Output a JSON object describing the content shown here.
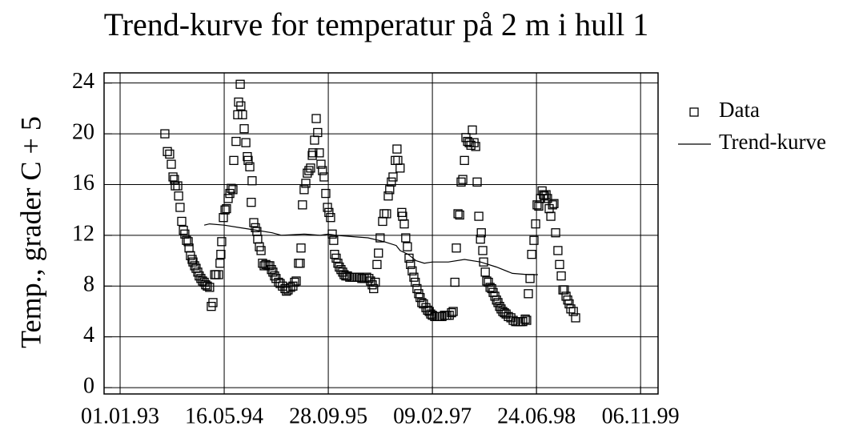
{
  "chart_data": {
    "type": "scatter",
    "title": "Trend-kurve for temperatur på 2 m i hull 1",
    "y_label": "Temp., grader C + 5",
    "xlim": [
      "1992-10-16",
      "2000-01-29"
    ],
    "xticks": [
      {
        "value": "1993-01-01",
        "label": "01.01.93"
      },
      {
        "value": "1994-05-16",
        "label": "16.05.94"
      },
      {
        "value": "1995-09-28",
        "label": "28.09.95"
      },
      {
        "value": "1997-02-09",
        "label": "09.02.97"
      },
      {
        "value": "1998-06-24",
        "label": "24.06.98"
      },
      {
        "value": "1999-11-06",
        "label": "06.11.99"
      }
    ],
    "ylim": [
      -0.5,
      24.8
    ],
    "yticks": [
      0,
      4,
      8,
      12,
      16,
      20,
      24
    ],
    "grid": true,
    "legend": "right",
    "series": [
      {
        "name": "Data",
        "marker": "square",
        "color": "#000000",
        "x": [
          "1993-08-04",
          "1993-08-16",
          "1993-08-27",
          "1993-09-04",
          "1993-09-12",
          "1993-09-19",
          "1993-09-23",
          "1993-10-05",
          "1993-10-09",
          "1993-10-16",
          "1993-10-24",
          "1993-11-01",
          "1993-11-08",
          "1993-11-16",
          "1993-11-24",
          "1993-11-28",
          "1993-12-05",
          "1993-12-13",
          "1993-12-17",
          "1993-12-25",
          "1994-01-01",
          "1994-01-09",
          "1994-01-16",
          "1994-01-24",
          "1994-02-01",
          "1994-02-09",
          "1994-02-16",
          "1994-02-24",
          "1994-03-07",
          "1994-03-15",
          "1994-03-23",
          "1994-03-31",
          "1994-04-07",
          "1994-04-19",
          "1994-04-26",
          "1994-04-30",
          "1994-05-04",
          "1994-05-12",
          "1994-05-20",
          "1994-05-27",
          "1994-06-04",
          "1994-06-12",
          "1994-06-19",
          "1994-06-27",
          "1994-07-01",
          "1994-07-12",
          "1994-07-20",
          "1994-07-24",
          "1994-08-01",
          "1994-08-04",
          "1994-08-12",
          "1994-08-20",
          "1994-08-28",
          "1994-09-04",
          "1994-09-08",
          "1994-09-16",
          "1994-09-23",
          "1994-09-27",
          "1994-10-05",
          "1994-10-13",
          "1994-10-20",
          "1994-10-24",
          "1994-11-01",
          "1994-11-09",
          "1994-11-16",
          "1994-11-24",
          "1994-12-02",
          "1994-12-13",
          "1994-12-21",
          "1994-12-29",
          "1995-01-05",
          "1995-01-13",
          "1995-01-20",
          "1995-02-01",
          "1995-02-09",
          "1995-02-20",
          "1995-03-04",
          "1995-03-11",
          "1995-03-19",
          "1995-03-31",
          "1995-04-11",
          "1995-04-19",
          "1995-04-27",
          "1995-05-08",
          "1995-05-16",
          "1995-05-20",
          "1995-05-27",
          "1995-06-04",
          "1995-06-12",
          "1995-06-19",
          "1995-06-27",
          "1995-07-05",
          "1995-07-13",
          "1995-07-16",
          "1995-07-24",
          "1995-08-01",
          "1995-08-08",
          "1995-08-16",
          "1995-08-24",
          "1995-08-31",
          "1995-09-08",
          "1995-09-16",
          "1995-09-24",
          "1995-10-01",
          "1995-10-09",
          "1995-10-17",
          "1995-10-24",
          "1995-10-28",
          "1995-11-05",
          "1995-11-13",
          "1995-11-20",
          "1995-11-28",
          "1995-12-06",
          "1995-12-13",
          "1995-12-21",
          "1995-12-29",
          "1996-01-09",
          "1996-01-21",
          "1996-02-01",
          "1996-02-13",
          "1996-02-24",
          "1996-03-07",
          "1996-03-18",
          "1996-03-30",
          "1996-04-10",
          "1996-04-18",
          "1996-04-26",
          "1996-05-03",
          "1996-05-11",
          "1996-05-19",
          "1996-05-26",
          "1996-06-03",
          "1996-06-15",
          "1996-06-22",
          "1996-07-04",
          "1996-07-12",
          "1996-07-19",
          "1996-07-27",
          "1996-08-04",
          "1996-08-15",
          "1996-08-23",
          "1996-08-27",
          "1996-09-07",
          "1996-09-15",
          "1996-09-19",
          "1996-09-27",
          "1996-10-04",
          "1996-10-12",
          "1996-10-20",
          "1996-10-27",
          "1996-11-04",
          "1996-11-12",
          "1996-11-19",
          "1996-11-27",
          "1996-12-05",
          "1996-12-12",
          "1996-12-20",
          "1996-12-28",
          "1997-01-09",
          "1997-01-17",
          "1997-01-25",
          "1997-02-01",
          "1997-02-09",
          "1997-02-20",
          "1997-03-04",
          "1997-03-16",
          "1997-03-27",
          "1997-04-08",
          "1997-04-19",
          "1997-05-01",
          "1997-05-12",
          "1997-05-20",
          "1997-05-28",
          "1997-06-04",
          "1997-06-12",
          "1997-06-20",
          "1997-06-27",
          "1997-07-05",
          "1997-07-13",
          "1997-07-20",
          "1997-07-28",
          "1997-08-05",
          "1997-08-13",
          "1997-08-20",
          "1997-08-28",
          "1997-09-05",
          "1997-09-12",
          "1997-09-20",
          "1997-09-28",
          "1997-10-02",
          "1997-10-09",
          "1997-10-13",
          "1997-10-21",
          "1997-10-28",
          "1997-11-05",
          "1997-11-13",
          "1997-11-21",
          "1997-11-28",
          "1997-12-06",
          "1997-12-14",
          "1997-12-21",
          "1997-12-29",
          "1998-01-05",
          "1998-01-13",
          "1998-01-21",
          "1998-01-29",
          "1998-02-09",
          "1998-02-21",
          "1998-03-04",
          "1998-03-16",
          "1998-03-27",
          "1998-04-08",
          "1998-04-19",
          "1998-05-01",
          "1998-05-08",
          "1998-05-16",
          "1998-05-24",
          "1998-06-01",
          "1998-06-12",
          "1998-06-20",
          "1998-06-27",
          "1998-07-05",
          "1998-07-13",
          "1998-07-21",
          "1998-07-28",
          "1998-08-01",
          "1998-08-09",
          "1998-08-16",
          "1998-08-24",
          "1998-09-01",
          "1998-09-09",
          "1998-09-16",
          "1998-09-24",
          "1998-10-05",
          "1998-10-13",
          "1998-10-21",
          "1998-10-29",
          "1998-11-05",
          "1998-11-13",
          "1998-11-21",
          "1998-11-28",
          "1998-12-06",
          "1998-12-18",
          "1998-12-29"
        ],
        "values": [
          20.0,
          18.6,
          18.4,
          17.6,
          16.6,
          16.4,
          15.9,
          15.9,
          15.1,
          14.2,
          13.1,
          12.4,
          12.1,
          11.6,
          11.5,
          11.0,
          10.4,
          10.1,
          9.9,
          9.6,
          9.4,
          9.1,
          8.8,
          8.6,
          8.4,
          8.3,
          8.1,
          8.0,
          7.9,
          6.4,
          6.7,
          8.9,
          8.9,
          8.9,
          9.8,
          10.5,
          11.5,
          13.4,
          14.0,
          14.1,
          14.9,
          15.3,
          15.7,
          15.6,
          17.9,
          19.4,
          21.5,
          22.5,
          23.9,
          22.2,
          21.5,
          20.4,
          19.3,
          18.2,
          17.9,
          17.4,
          14.6,
          16.3,
          13.0,
          12.6,
          12.3,
          11.7,
          11.1,
          10.8,
          9.8,
          9.6,
          9.7,
          9.6,
          9.6,
          9.3,
          9.1,
          8.8,
          8.6,
          8.3,
          8.2,
          8.0,
          7.8,
          7.6,
          7.7,
          7.9,
          8.0,
          8.3,
          8.4,
          9.8,
          9.8,
          11.0,
          14.4,
          15.6,
          16.1,
          16.9,
          17.1,
          17.3,
          18.3,
          18.5,
          19.5,
          21.2,
          20.1,
          18.5,
          17.6,
          17.1,
          16.6,
          15.3,
          14.2,
          13.8,
          13.4,
          12.1,
          11.6,
          10.5,
          10.2,
          9.8,
          9.5,
          9.3,
          9.1,
          8.9,
          8.8,
          8.8,
          8.7,
          8.7,
          8.7,
          8.7,
          8.7,
          8.6,
          8.6,
          8.7,
          8.6,
          8.4,
          8.1,
          7.8,
          8.3,
          9.7,
          10.6,
          11.8,
          13.1,
          13.7,
          13.7,
          15.1,
          15.6,
          16.2,
          16.6,
          17.9,
          18.8,
          17.9,
          17.3,
          13.8,
          13.5,
          12.9,
          11.8,
          11.1,
          10.2,
          9.7,
          9.2,
          8.7,
          8.3,
          7.8,
          7.4,
          7.1,
          6.7,
          6.6,
          6.3,
          6.1,
          6.0,
          5.8,
          5.7,
          5.6,
          5.6,
          5.6,
          5.6,
          5.7,
          5.7,
          5.7,
          5.9,
          6.0,
          8.3,
          11.0,
          13.7,
          13.6,
          16.2,
          16.4,
          17.9,
          19.7,
          19.4,
          19.3,
          19.1,
          20.3,
          19.3,
          19.0,
          16.2,
          13.5,
          11.7,
          12.2,
          10.8,
          9.9,
          9.1,
          8.4,
          8.3,
          7.9,
          7.8,
          7.5,
          7.2,
          6.9,
          6.7,
          6.4,
          6.2,
          6.0,
          5.9,
          5.8,
          5.6,
          5.5,
          5.3,
          5.2,
          5.2,
          5.2,
          5.2,
          5.4,
          5.3,
          7.4,
          8.6,
          10.5,
          11.6,
          12.9,
          14.4,
          14.3,
          14.9,
          15.5,
          15.2,
          15.1,
          15.2,
          14.9,
          14.1,
          13.5,
          14.4,
          14.5,
          12.2,
          10.8,
          9.7,
          8.8,
          7.7,
          7.7,
          7.2,
          6.9,
          6.6,
          6.2,
          6.0,
          5.5
        ]
      },
      {
        "name": "Trend-kurve",
        "marker": "line",
        "color": "#000000",
        "x": [
          "1994-02-09",
          "1994-03-07",
          "1994-05-16",
          "1994-08-01",
          "1994-10-17",
          "1995-01-01",
          "1995-02-16",
          "1995-06-04",
          "1995-08-20",
          "1995-09-27",
          "1995-11-05",
          "1996-01-21",
          "1996-04-06",
          "1996-06-22",
          "1996-08-19",
          "1996-09-07",
          "1996-10-16",
          "1996-11-23",
          "1997-01-01",
          "1997-02-09",
          "1997-04-27",
          "1997-07-13",
          "1997-09-28",
          "1997-12-14",
          "1998-02-28",
          "1998-05-16",
          "1998-07-01"
        ],
        "values": [
          12.8,
          12.9,
          12.8,
          12.6,
          12.4,
          12.2,
          12.0,
          12.1,
          12.0,
          12.1,
          12.0,
          11.9,
          11.8,
          11.5,
          11.2,
          10.8,
          10.5,
          10.0,
          9.8,
          9.9,
          9.9,
          10.1,
          9.9,
          9.5,
          9.0,
          8.9,
          8.9
        ]
      }
    ]
  }
}
